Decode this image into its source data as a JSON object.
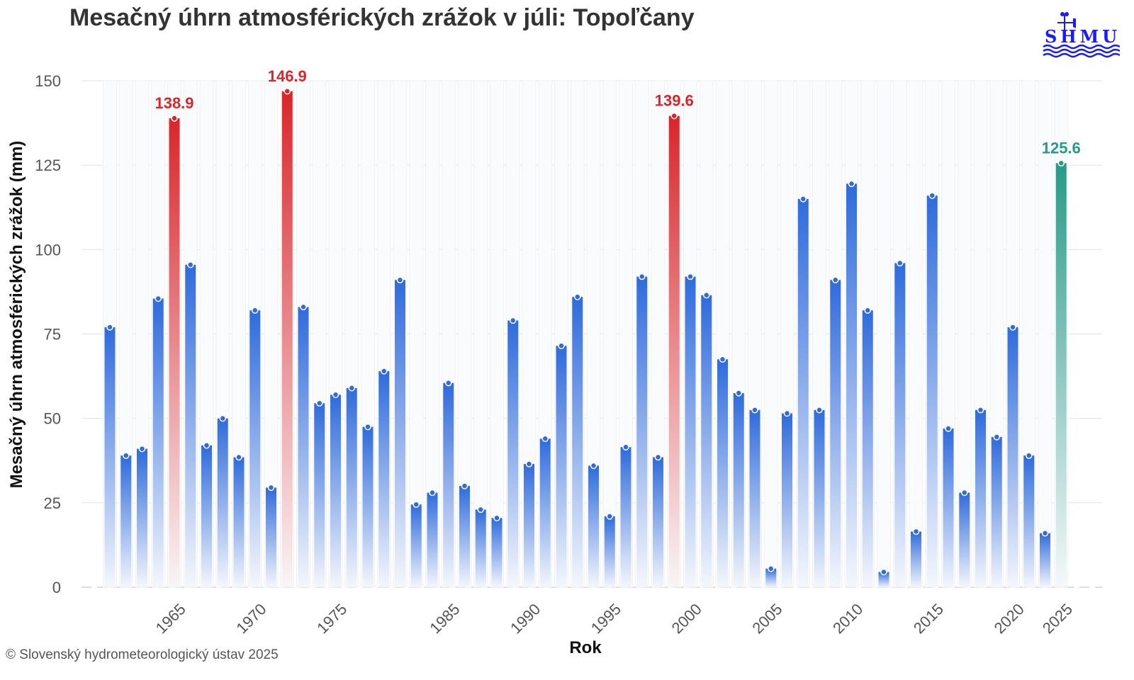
{
  "chart_data": {
    "type": "bar",
    "title": "Mesačný úhrn atmosférických zrážok v júli: Topoľčany",
    "xlabel": "Rok",
    "ylabel": "Mesačný úhrn atmosférických zrážok (mm)",
    "ylim": [
      0,
      150
    ],
    "yticks": [
      0,
      25,
      50,
      75,
      100,
      125,
      150
    ],
    "xtick_labels": [
      "1965",
      "1970",
      "1975",
      "1985",
      "1990",
      "1995",
      "2000",
      "2005",
      "2010",
      "2015",
      "2020",
      "2025"
    ],
    "categories": [
      "1961",
      "1962",
      "1963",
      "1964",
      "1965",
      "1966",
      "1967",
      "1968",
      "1969",
      "1970",
      "1971",
      "1972",
      "1973",
      "1974",
      "1975",
      "1976",
      "1977",
      "1978",
      "1979",
      "1983",
      "1984",
      "1985",
      "1986",
      "1987",
      "1988",
      "1989",
      "1990",
      "1991",
      "1992",
      "1993",
      "1994",
      "1995",
      "1996",
      "1997",
      "1998",
      "1999",
      "2000",
      "2001",
      "2002",
      "2003",
      "2004",
      "2005",
      "2006",
      "2007",
      "2008",
      "2009",
      "2010",
      "2011",
      "2012",
      "2013",
      "2014",
      "2015",
      "2016",
      "2017",
      "2018",
      "2019",
      "2020",
      "2021",
      "2024",
      "2025"
    ],
    "values": [
      77,
      39,
      41,
      85.5,
      138.9,
      95.5,
      42,
      50,
      38.5,
      82,
      29.5,
      146.9,
      83,
      54.5,
      57,
      59,
      47.5,
      64,
      91,
      24.5,
      28,
      60.5,
      30,
      23,
      20.5,
      79,
      36.5,
      44,
      71.5,
      86,
      36,
      21,
      41.5,
      92,
      38.5,
      139.6,
      92,
      86.5,
      67.5,
      57.5,
      52.5,
      5.5,
      51.5,
      115,
      52.5,
      91,
      119.5,
      82,
      4.5,
      96,
      16.5,
      116,
      47,
      28,
      52.5,
      44.5,
      77,
      39,
      16,
      125.6
    ],
    "highlighted": {
      "1965": "record",
      "1972": "record",
      "1999": "record",
      "2025": "current"
    },
    "data_labels": {
      "1965": "138.9",
      "1972": "146.9",
      "1999": "139.6",
      "2025": "125.6"
    },
    "grid": true,
    "colors": {
      "normal": "#2f6bdc",
      "record": "#d9262b",
      "current": "#2a9a88"
    }
  },
  "logo_text": "SHMÚ",
  "footer": "© Slovenský hydrometeorologický ústav 2025"
}
